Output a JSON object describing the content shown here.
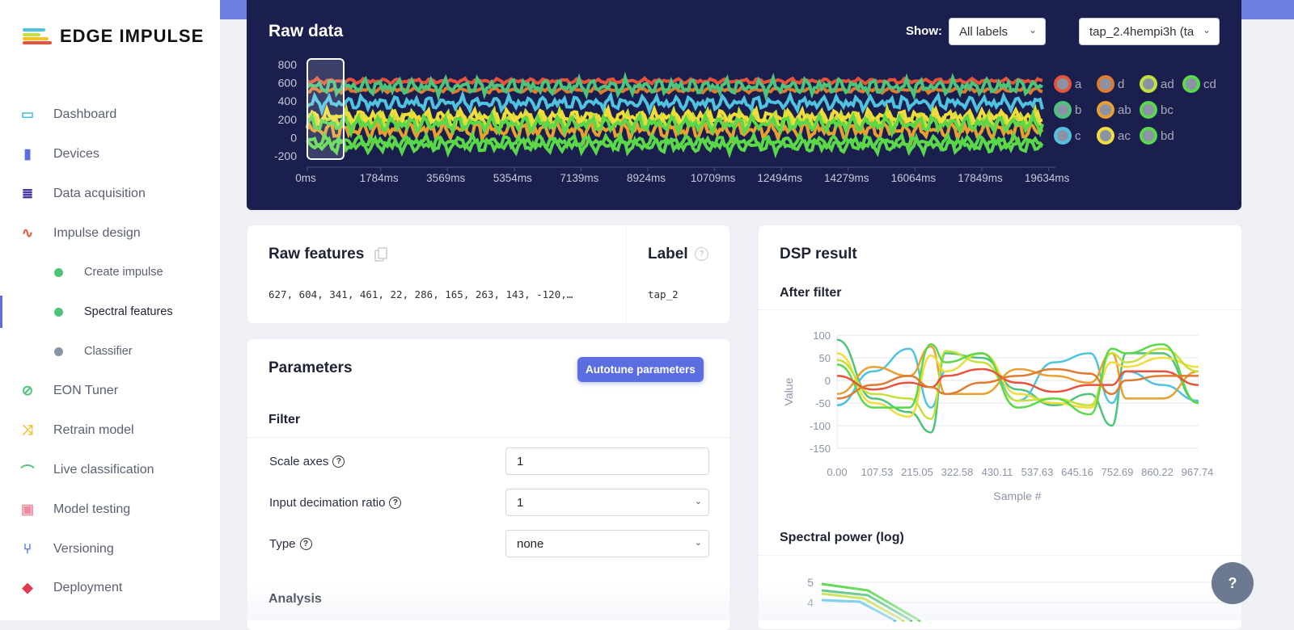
{
  "brand": "EDGE IMPULSE",
  "sidebar": {
    "items": [
      {
        "label": "Dashboard",
        "icon": "monitor-icon",
        "color": "#4fc3e0"
      },
      {
        "label": "Devices",
        "icon": "chip-icon",
        "color": "#5b6ee1"
      },
      {
        "label": "Data acquisition",
        "icon": "database-icon",
        "color": "#3a2a9a"
      },
      {
        "label": "Impulse design",
        "icon": "pulse-icon",
        "color": "#e8533a"
      },
      {
        "label": "EON Tuner",
        "icon": "compass-icon",
        "color": "#4cc47a"
      },
      {
        "label": "Retrain model",
        "icon": "shuffle-icon",
        "color": "#f2c12e"
      },
      {
        "label": "Live classification",
        "icon": "bezier-icon",
        "color": "#4cc47a"
      },
      {
        "label": "Model testing",
        "icon": "clipboard-check-icon",
        "color": "#f08aa0"
      },
      {
        "label": "Versioning",
        "icon": "branch-icon",
        "color": "#5b6ee1"
      },
      {
        "label": "Deployment",
        "icon": "box-icon",
        "color": "#e03a4e"
      }
    ],
    "subitems": [
      {
        "label": "Create impulse",
        "dot": "#4cc47a",
        "active": false
      },
      {
        "label": "Spectral features",
        "dot": "#4cc47a",
        "active": true
      },
      {
        "label": "Classifier",
        "dot": "#8a94a6",
        "active": false
      }
    ]
  },
  "raw_data": {
    "title": "Raw data",
    "show_label": "Show:",
    "show_value": "All labels",
    "sample_value": "tap_2.4hempi3h (ta"
  },
  "raw_features": {
    "title": "Raw features",
    "values": "627, 604, 341, 461, 22, 286, 165, 263, 143, -120,…"
  },
  "label": {
    "title": "Label",
    "value": "tap_2"
  },
  "parameters": {
    "title": "Parameters",
    "autotune": "Autotune parameters",
    "filter": "Filter",
    "fields": [
      {
        "label": "Scale axes",
        "value": "1",
        "type": "input"
      },
      {
        "label": "Input decimation ratio",
        "value": "1",
        "type": "select"
      },
      {
        "label": "Type",
        "value": "none",
        "type": "select"
      }
    ],
    "analysis": "Analysis"
  },
  "dsp": {
    "title": "DSP result",
    "after_filter": "After filter",
    "spectral": "Spectral power (log)"
  },
  "help": "?",
  "chart_data": [
    {
      "type": "line",
      "title": "Raw data",
      "xlabel": "",
      "ylabel": "",
      "x_ticks": [
        "0ms",
        "1784ms",
        "3569ms",
        "5354ms",
        "7139ms",
        "8924ms",
        "10709ms",
        "12494ms",
        "14279ms",
        "16064ms",
        "17849ms",
        "19634ms"
      ],
      "y_ticks": [
        "800",
        "600",
        "400",
        "200",
        "0",
        "-200"
      ],
      "ylim": [
        -250,
        850
      ],
      "xlim": [
        0,
        21000
      ],
      "series": [
        {
          "name": "a",
          "color": "#e8533a",
          "base": 620,
          "amp": 25
        },
        {
          "name": "d",
          "color": "#e07a2e",
          "base": 520,
          "amp": 25
        },
        {
          "name": "b",
          "color": "#4cc47a",
          "base": 560,
          "amp": 80
        },
        {
          "name": "c",
          "color": "#4fc3e0",
          "base": 380,
          "amp": 70
        },
        {
          "name": "ad",
          "color": "#c6e03a",
          "base": 200,
          "amp": 90
        },
        {
          "name": "ab",
          "color": "#e8a030",
          "base": 80,
          "amp": 90
        },
        {
          "name": "ac",
          "color": "#f2dc3a",
          "base": 230,
          "amp": 70
        },
        {
          "name": "bc",
          "color": "#5ad84a",
          "base": 150,
          "amp": 80
        },
        {
          "name": "bd",
          "color": "#5ad84a",
          "base": -90,
          "amp": 70
        },
        {
          "name": "cd",
          "color": "#5ad84a",
          "base": -40,
          "amp": 60
        }
      ]
    },
    {
      "type": "line",
      "title": "After filter",
      "xlabel": "Sample #",
      "ylabel": "Value",
      "x_ticks": [
        "0.00",
        "107.53",
        "215.05",
        "322.58",
        "430.11",
        "537.63",
        "645.16",
        "752.69",
        "860.22",
        "967.74"
      ],
      "y_ticks": [
        "100",
        "50",
        "0",
        "-50",
        "-100",
        "-150"
      ],
      "ylim": [
        -150,
        100
      ],
      "xlim": [
        0,
        1000
      ],
      "x": [
        0,
        100,
        200,
        260,
        300,
        400,
        500,
        600,
        700,
        760,
        800,
        900,
        1000
      ],
      "series": [
        {
          "color": "#4cc47a",
          "values": [
            90,
            -40,
            -70,
            -115,
            60,
            50,
            -20,
            -55,
            -30,
            -100,
            60,
            60,
            -50
          ]
        },
        {
          "color": "#4fc3e0",
          "values": [
            -55,
            20,
            70,
            -60,
            20,
            60,
            -45,
            40,
            60,
            -50,
            20,
            -10,
            -45
          ]
        },
        {
          "color": "#e8a030",
          "values": [
            -30,
            30,
            10,
            75,
            -30,
            -30,
            25,
            10,
            -5,
            60,
            -40,
            -40,
            20
          ]
        },
        {
          "color": "#f2dc3a",
          "values": [
            60,
            -50,
            -80,
            55,
            20,
            60,
            -30,
            -50,
            -60,
            40,
            30,
            50,
            30
          ]
        },
        {
          "color": "#c6e03a",
          "values": [
            45,
            -30,
            -40,
            -85,
            65,
            40,
            -45,
            -40,
            -55,
            60,
            40,
            70,
            20
          ]
        },
        {
          "color": "#5ad84a",
          "values": [
            35,
            -60,
            -60,
            80,
            40,
            60,
            -60,
            -40,
            -75,
            70,
            60,
            80,
            -50
          ]
        },
        {
          "color": "#e8533a",
          "values": [
            10,
            -20,
            -5,
            -15,
            10,
            25,
            -5,
            -25,
            -10,
            -10,
            20,
            20,
            -10
          ]
        },
        {
          "color": "#e07a2e",
          "values": [
            -40,
            -10,
            10,
            -15,
            -30,
            -5,
            10,
            25,
            15,
            -30,
            0,
            10,
            10
          ]
        }
      ]
    },
    {
      "type": "line",
      "title": "Spectral power (log)",
      "y_ticks": [
        "5",
        "4"
      ],
      "partial": true
    }
  ]
}
